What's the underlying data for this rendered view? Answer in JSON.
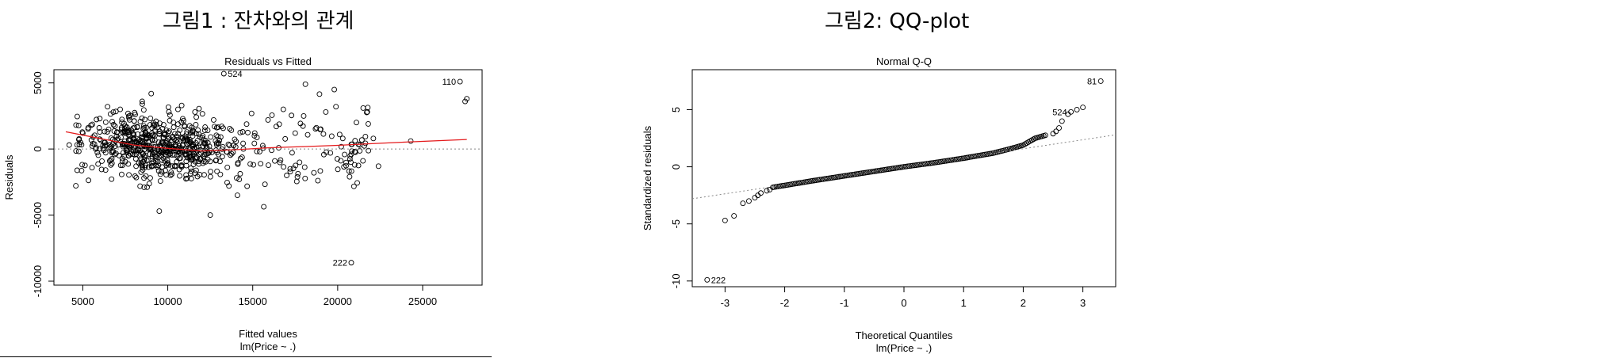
{
  "captions": {
    "fig1": "그림1 : 잔차와의 관계",
    "fig2": "그림2: QQ-plot"
  },
  "colors": {
    "smooth": "#e41a1c",
    "points": "#000000",
    "refline": "#888888"
  },
  "chart_data": [
    {
      "type": "scatter",
      "title": "Residuals vs Fitted",
      "xlabel": "Fitted values",
      "subtitle": "lm(Price ~ .)",
      "ylabel": "Residuals",
      "xlim": [
        3300,
        28500
      ],
      "ylim": [
        -10300,
        6000
      ],
      "xticks": [
        5000,
        10000,
        15000,
        20000,
        25000
      ],
      "yticks": [
        5000,
        0,
        -5000,
        -10000
      ],
      "yticklabels": [
        "5000",
        "0",
        "-5000",
        "-10000"
      ],
      "zero_line": true,
      "smooth_line": [
        [
          4000,
          1300
        ],
        [
          6000,
          800
        ],
        [
          8000,
          300
        ],
        [
          10000,
          50
        ],
        [
          12000,
          -150
        ],
        [
          14000,
          -50
        ],
        [
          16000,
          100
        ],
        [
          18000,
          180
        ],
        [
          20000,
          280
        ],
        [
          22000,
          400
        ],
        [
          24000,
          520
        ],
        [
          27600,
          720
        ]
      ],
      "points": [
        [
          13300,
          5700
        ],
        [
          27200,
          5100
        ],
        [
          27500,
          3600
        ],
        [
          27600,
          3800
        ],
        [
          20800,
          -8600
        ],
        [
          18100,
          4900
        ],
        [
          19800,
          4500
        ],
        [
          21500,
          3100
        ],
        [
          24300,
          600
        ],
        [
          21000,
          -1200
        ],
        [
          20700,
          -2100
        ],
        [
          21800,
          1900
        ],
        [
          19300,
          2800
        ],
        [
          18600,
          -1800
        ],
        [
          20300,
          800
        ],
        [
          22400,
          -1300
        ],
        [
          17000,
          -2000
        ],
        [
          19000,
          1500
        ],
        [
          15900,
          2200
        ],
        [
          14100,
          -3500
        ],
        [
          12500,
          -5000
        ],
        [
          9500,
          -4700
        ],
        [
          13600,
          -2800
        ],
        [
          4200,
          300
        ],
        [
          5000,
          1200
        ],
        [
          5600,
          400
        ],
        [
          6000,
          2300
        ],
        [
          7200,
          3000
        ],
        [
          8500,
          3400
        ],
        [
          10600,
          3000
        ],
        [
          11600,
          2800
        ],
        [
          16800,
          3000
        ],
        [
          12700,
          2200
        ],
        [
          22100,
          800
        ],
        [
          20800,
          -400
        ],
        [
          21300,
          300
        ],
        [
          15100,
          1000
        ],
        [
          16300,
          -900
        ],
        [
          18000,
          2500
        ],
        [
          17500,
          1200
        ]
      ],
      "labels": [
        {
          "text": "524",
          "x": 13300,
          "y": 5700,
          "side": "right"
        },
        {
          "text": "110",
          "x": 27200,
          "y": 5100,
          "side": "left"
        },
        {
          "text": "222",
          "x": 20800,
          "y": -8600,
          "side": "left"
        }
      ]
    },
    {
      "type": "scatter",
      "title": "Normal Q-Q",
      "xlabel": "Theoretical Quantiles",
      "subtitle": "lm(Price ~ .)",
      "ylabel": "Standardized residuals",
      "xlim": [
        -3.55,
        3.55
      ],
      "ylim": [
        -10.5,
        8.5
      ],
      "xticks": [
        -3,
        -2,
        -1,
        0,
        1,
        2,
        3
      ],
      "yticks": [
        5,
        0,
        -5,
        -10
      ],
      "reference_line": [
        [
          -3.55,
          -2.8
        ],
        [
          3.55,
          2.8
        ]
      ],
      "qq_curve": [
        [
          -2.2,
          -1.8
        ],
        [
          -1.5,
          -1.2
        ],
        [
          -1,
          -0.8
        ],
        [
          -0.5,
          -0.4
        ],
        [
          0,
          0
        ],
        [
          0.5,
          0.35
        ],
        [
          1,
          0.75
        ],
        [
          1.5,
          1.2
        ],
        [
          1.8,
          1.6
        ],
        [
          2,
          1.9
        ],
        [
          2.2,
          2.5
        ],
        [
          2.4,
          2.8
        ]
      ],
      "points": [
        [
          -3.3,
          -9.9
        ],
        [
          -3.0,
          -4.7
        ],
        [
          -2.85,
          -4.3
        ],
        [
          -2.7,
          -3.2
        ],
        [
          -2.6,
          -3.0
        ],
        [
          -2.5,
          -2.7
        ],
        [
          -2.45,
          -2.5
        ],
        [
          -2.4,
          -2.3
        ],
        [
          -2.3,
          -2.1
        ],
        [
          -2.25,
          -2.0
        ],
        [
          2.5,
          2.9
        ],
        [
          2.55,
          3.1
        ],
        [
          2.6,
          3.4
        ],
        [
          2.65,
          4.0
        ],
        [
          2.75,
          4.6
        ],
        [
          2.8,
          4.8
        ],
        [
          2.9,
          5.0
        ],
        [
          3.0,
          5.2
        ],
        [
          3.3,
          7.5
        ]
      ],
      "labels": [
        {
          "text": "222",
          "x": -3.3,
          "y": -9.9,
          "side": "right"
        },
        {
          "text": "81",
          "x": 3.3,
          "y": 7.5,
          "side": "left"
        },
        {
          "text": "524",
          "x": 2.8,
          "y": 4.8,
          "side": "left"
        }
      ]
    }
  ]
}
